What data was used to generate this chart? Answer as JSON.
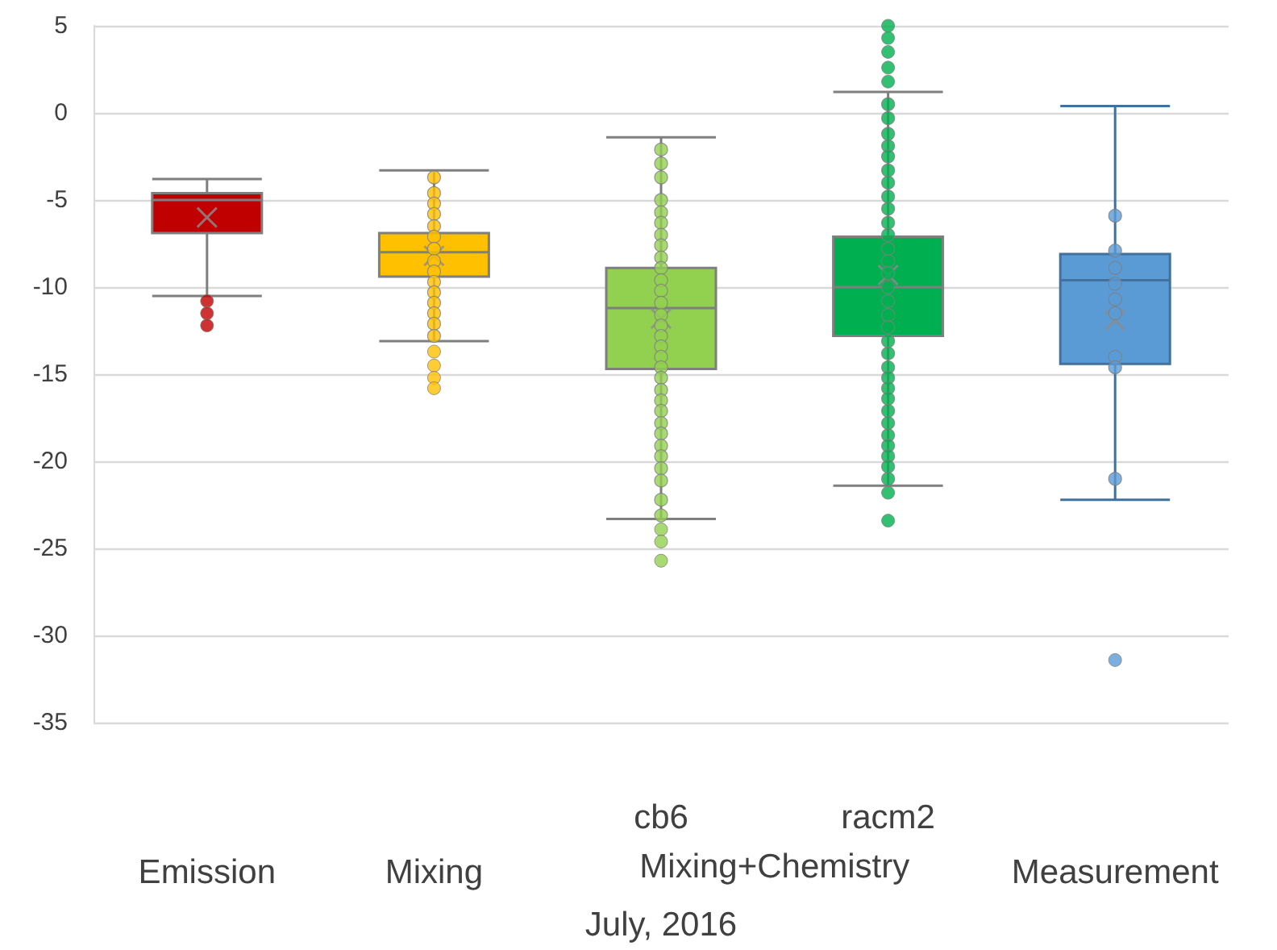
{
  "chart_data": {
    "type": "box",
    "xlabel": "July, 2016",
    "annotations": [
      "Mixing+Chemistry"
    ],
    "categories": [
      "Emission",
      "Mixing",
      "cb6",
      "racm2",
      "Measurement"
    ],
    "colors": [
      "#c00000",
      "#ffc000",
      "#92d050",
      "#00b050",
      "#5b9bd5"
    ],
    "boxes": [
      {
        "low": -10.5,
        "q1": -6.9,
        "median": -5.0,
        "q3": -4.6,
        "high": -3.8,
        "mean": -6.0,
        "outliers": [
          -10.8,
          -11.5,
          -12.2
        ]
      },
      {
        "low": -13.1,
        "q1": -9.4,
        "median": -8.0,
        "q3": -6.9,
        "high": -3.3,
        "mean": -8.2,
        "outliers": [
          -13.7,
          -14.5,
          -15.2,
          -15.8
        ]
      },
      {
        "low": -23.3,
        "q1": -14.7,
        "median": -11.2,
        "q3": -8.9,
        "high": -1.4,
        "mean": -11.8,
        "outliers": [
          -23.9,
          -24.6,
          -25.7
        ]
      },
      {
        "low": -21.4,
        "q1": -12.8,
        "median": -10.0,
        "q3": -7.1,
        "high": 1.2,
        "mean": -9.3,
        "outliers": [
          5.0,
          4.3,
          3.5,
          2.6,
          1.8,
          -21.8,
          -23.4
        ]
      },
      {
        "low": -22.2,
        "q1": -14.4,
        "median": -9.6,
        "q3": -8.1,
        "high": 0.4,
        "mean": -11.9,
        "outliers": [
          -31.4
        ]
      }
    ],
    "series": [
      {
        "type": "scatter",
        "color": "#ffc000",
        "x": [
          "Mixing",
          "Mixing",
          "Mixing",
          "Mixing",
          "Mixing",
          "Mixing",
          "Mixing",
          "Mixing",
          "Mixing",
          "Mixing",
          "Mixing",
          "Mixing",
          "Mixing",
          "Mixing",
          "Mixing"
        ],
        "values": [
          -3.7,
          -4.6,
          -5.2,
          -5.8,
          -6.5,
          -7.1,
          -7.8,
          -8.5,
          -9.1,
          -9.7,
          -10.3,
          -10.9,
          -11.5,
          -12.1,
          -12.8
        ]
      },
      {
        "type": "scatter",
        "color": "#92d050",
        "x": [
          "cb6",
          "cb6",
          "cb6",
          "cb6",
          "cb6",
          "cb6",
          "cb6",
          "cb6",
          "cb6",
          "cb6",
          "cb6",
          "cb6",
          "cb6",
          "cb6",
          "cb6",
          "cb6",
          "cb6",
          "cb6",
          "cb6",
          "cb6",
          "cb6",
          "cb6",
          "cb6",
          "cb6",
          "cb6",
          "cb6",
          "cb6",
          "cb6",
          "cb6",
          "cb6",
          "cb6"
        ],
        "values": [
          -2.1,
          -2.9,
          -3.7,
          -5.0,
          -5.7,
          -6.3,
          -7.0,
          -7.6,
          -8.3,
          -8.9,
          -9.6,
          -10.2,
          -10.9,
          -11.6,
          -12.2,
          -12.8,
          -13.4,
          -14.0,
          -14.6,
          -15.2,
          -15.9,
          -16.5,
          -17.1,
          -17.8,
          -18.4,
          -19.1,
          -19.7,
          -20.4,
          -21.1,
          -22.2,
          -23.1
        ]
      },
      {
        "type": "scatter",
        "color": "#00b050",
        "x": [
          "racm2",
          "racm2",
          "racm2",
          "racm2",
          "racm2",
          "racm2",
          "racm2",
          "racm2",
          "racm2",
          "racm2",
          "racm2",
          "racm2",
          "racm2",
          "racm2",
          "racm2",
          "racm2",
          "racm2",
          "racm2",
          "racm2",
          "racm2",
          "racm2",
          "racm2",
          "racm2",
          "racm2",
          "racm2",
          "racm2",
          "racm2",
          "racm2",
          "racm2",
          "racm2",
          "racm2"
        ],
        "values": [
          0.5,
          -0.3,
          -1.2,
          -1.9,
          -2.5,
          -3.3,
          -4.0,
          -4.8,
          -5.5,
          -6.3,
          -7.0,
          -7.8,
          -8.5,
          -9.2,
          -10.0,
          -10.8,
          -11.6,
          -12.3,
          -13.1,
          -13.8,
          -14.6,
          -15.2,
          -15.8,
          -16.4,
          -17.1,
          -17.8,
          -18.5,
          -19.1,
          -19.7,
          -20.3,
          -21.0
        ]
      },
      {
        "type": "scatter",
        "color": "#5b9bd5",
        "x": [
          "Measurement",
          "Measurement",
          "Measurement",
          "Measurement",
          "Measurement",
          "Measurement",
          "Measurement",
          "Measurement",
          "Measurement"
        ],
        "values": [
          -5.9,
          -7.9,
          -8.9,
          -9.8,
          -10.7,
          -11.5,
          -14.0,
          -14.6,
          -21.0
        ]
      }
    ],
    "ylim": [
      -35,
      5
    ],
    "yticks": [
      -35,
      -30,
      -25,
      -20,
      -15,
      -10,
      -5,
      0,
      5
    ],
    "grid": "y"
  }
}
